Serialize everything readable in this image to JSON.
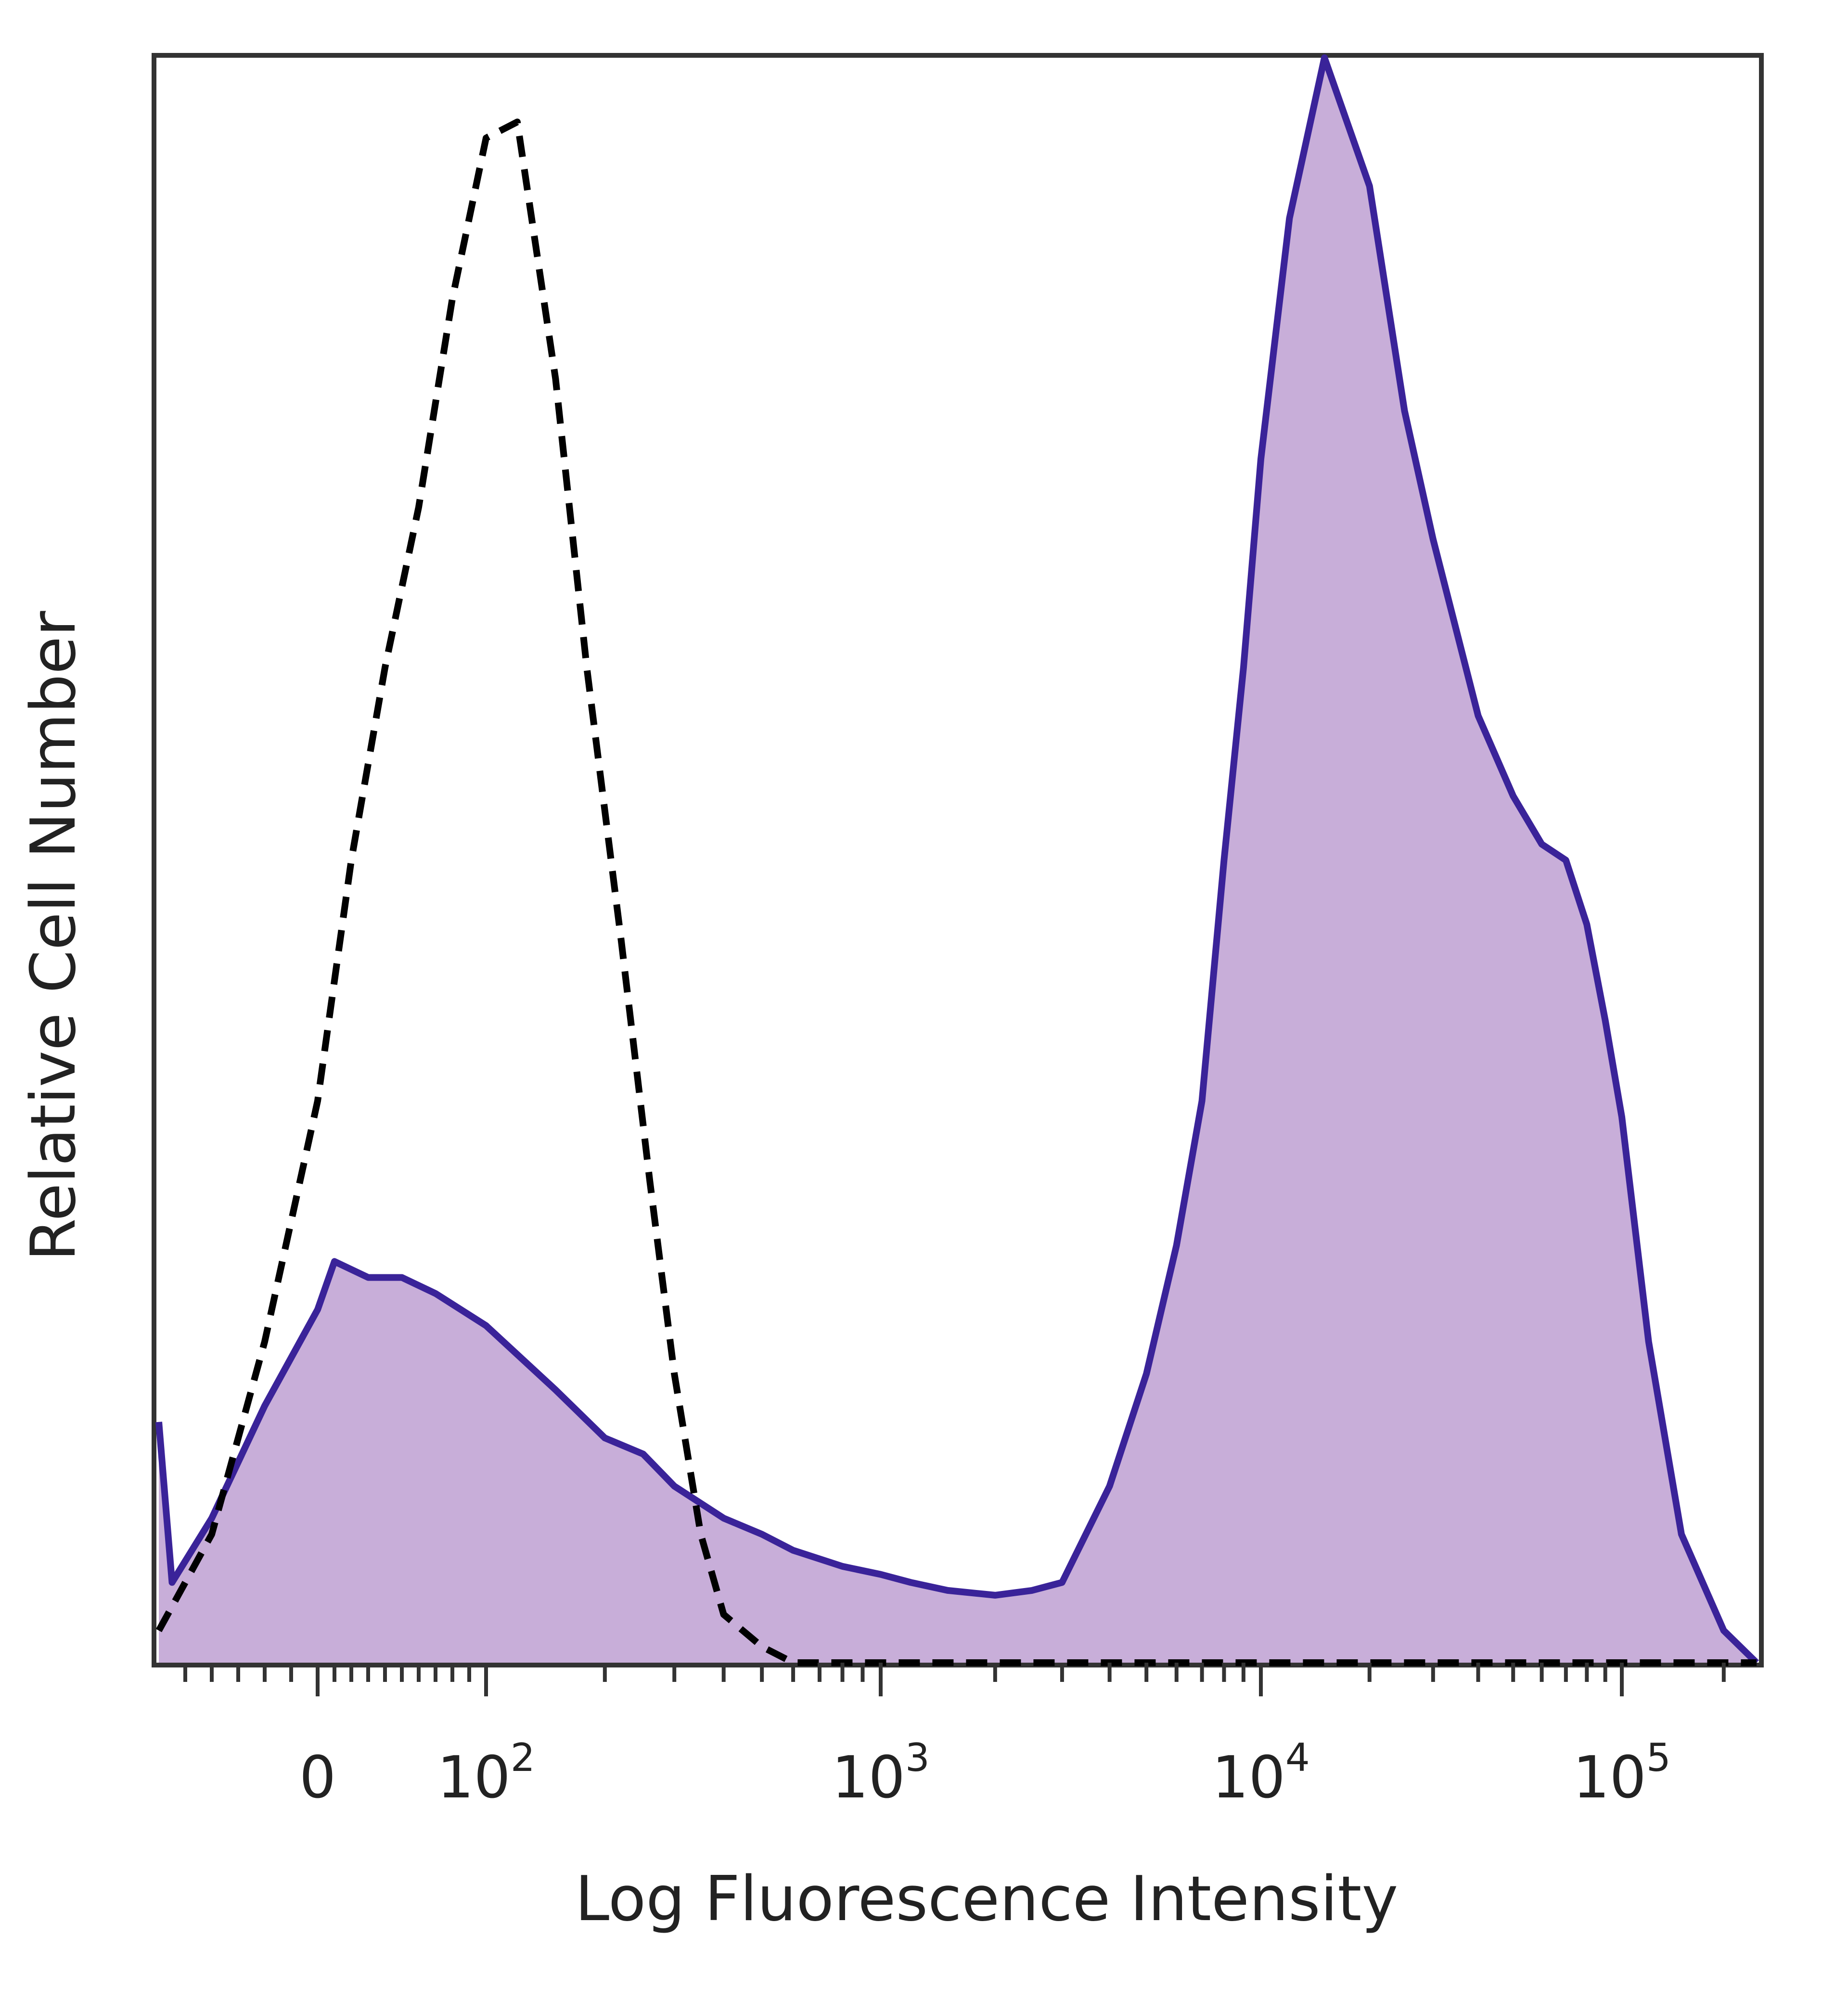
{
  "chart_data": {
    "type": "area",
    "title": "",
    "xlabel": "Log Fluorescence Intensity",
    "ylabel": "Relative Cell Number",
    "x_scale": "biexponential",
    "xlim": [
      -60,
      250000
    ],
    "ylim": [
      0,
      100
    ],
    "y_ticks_shown": false,
    "grid": false,
    "legend": "none",
    "x_tick_labels": [
      {
        "value": 0,
        "label": "0"
      },
      {
        "value": 100,
        "label": "10^2"
      },
      {
        "value": 1000,
        "label": "10^3"
      },
      {
        "value": 10000,
        "label": "10^4"
      },
      {
        "value": 100000,
        "label": "10^5"
      }
    ],
    "series": [
      {
        "style": "dashed-outline",
        "color": "#000000",
        "x": [
          -60,
          -40,
          -20,
          0,
          20,
          40,
          60,
          80,
          100,
          120,
          150,
          180,
          220,
          260,
          300,
          350,
          400,
          500,
          600,
          800,
          1000,
          5000,
          10000,
          50000,
          100000,
          250000
        ],
        "y": [
          2,
          8,
          20,
          35,
          50,
          62,
          72,
          85,
          95,
          96,
          80,
          62,
          45,
          30,
          18,
          8,
          3,
          1,
          0,
          0,
          0,
          0,
          0,
          0,
          0,
          0
        ]
      },
      {
        "style": "filled",
        "color": "#3a2399",
        "fill": "#c8aed9",
        "x": [
          -60,
          -55,
          -40,
          -20,
          0,
          10,
          30,
          50,
          70,
          100,
          150,
          200,
          250,
          300,
          400,
          500,
          600,
          800,
          1000,
          1200,
          1500,
          2000,
          2500,
          3000,
          4000,
          5000,
          6000,
          7000,
          8000,
          9000,
          10000,
          12000,
          15000,
          20000,
          25000,
          30000,
          40000,
          50000,
          60000,
          70000,
          80000,
          90000,
          100000,
          120000,
          150000,
          200000,
          250000
        ],
        "y": [
          15,
          5,
          9,
          16,
          22,
          25,
          24,
          24,
          23,
          21,
          17,
          14,
          13,
          11,
          9,
          8,
          7,
          6,
          5.5,
          5,
          4.5,
          4.2,
          4.5,
          5,
          11,
          18,
          26,
          35,
          50,
          62,
          75,
          90,
          100,
          92,
          78,
          70,
          59,
          54,
          51,
          50,
          46,
          40,
          34,
          20,
          8,
          2,
          0
        ]
      }
    ]
  }
}
